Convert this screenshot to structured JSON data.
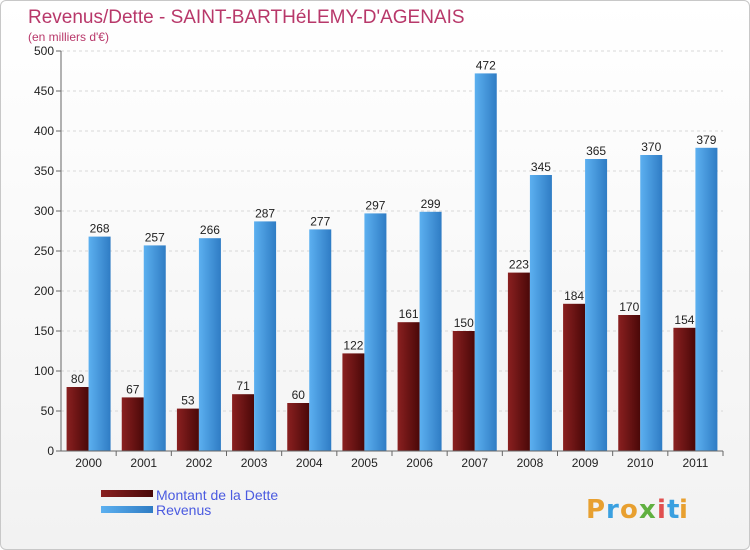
{
  "chart_data": {
    "type": "bar",
    "title": "Revenus/Dette - SAINT-BARTHéLEMY-D'AGENAIS",
    "subtitle": "(en milliers d'€)",
    "categories": [
      "2000",
      "2001",
      "2002",
      "2003",
      "2004",
      "2005",
      "2006",
      "2007",
      "2008",
      "2009",
      "2010",
      "2011"
    ],
    "series": [
      {
        "name": "Montant de la Dette",
        "values": [
          80,
          67,
          53,
          71,
          60,
          122,
          161,
          150,
          223,
          184,
          170,
          154
        ],
        "color": "#7a1a1a"
      },
      {
        "name": "Revenus",
        "values": [
          268,
          257,
          266,
          287,
          277,
          297,
          299,
          472,
          345,
          365,
          370,
          379
        ],
        "color": "#4ea6e8"
      }
    ],
    "ylim": [
      0,
      500
    ],
    "yticks": [
      0,
      50,
      100,
      150,
      200,
      250,
      300,
      350,
      400,
      450,
      500
    ],
    "grid": true,
    "legend_position": "bottom-left"
  },
  "branding": {
    "logo_letters": [
      "P",
      "r",
      "o",
      "x",
      "i",
      "t",
      "i"
    ],
    "logo_colors": [
      "#e8a030",
      "#3aa0e0",
      "#e8a030",
      "#60b040",
      "#e05050",
      "#3aa0e0",
      "#e8a030"
    ]
  }
}
